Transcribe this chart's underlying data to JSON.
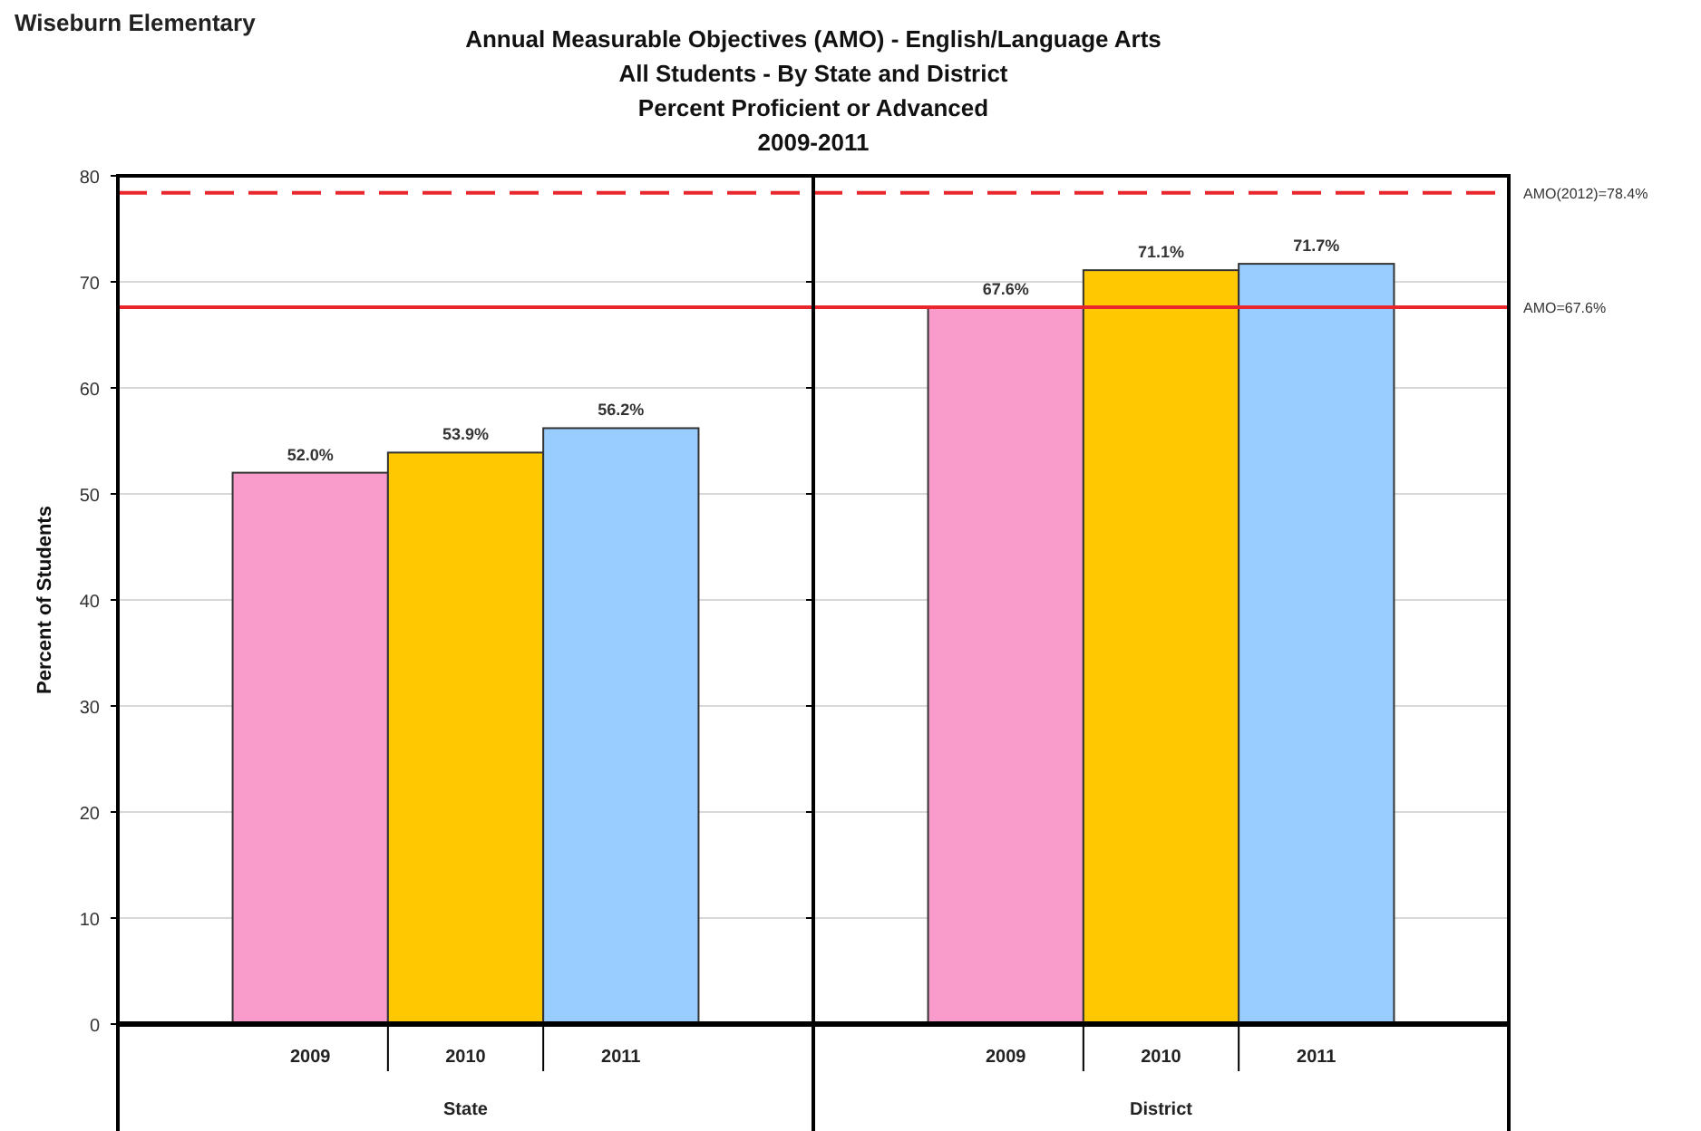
{
  "chart_data": [
    {
      "type": "bar",
      "title": "Annual Measurable Objectives (AMO) - English/Language Arts",
      "subtitle": "All Students - By State and District\nPercent Proficient or Advanced\n2009-2011",
      "annotations": [
        "Wiseburn Elementary"
      ],
      "ylabel": "Percent of Students",
      "xlabel": "State",
      "categories": [
        "2009",
        "2010",
        "2011"
      ],
      "values": [
        52.0,
        53.9,
        56.2
      ],
      "value_labels": [
        "52.0%",
        "53.9%",
        "56.2%"
      ],
      "colors": [
        "#f99bcb",
        "#ffc800",
        "#99ccff"
      ],
      "ylim": [
        0,
        80
      ],
      "yticks": [
        0,
        10,
        20,
        30,
        40,
        50,
        60,
        70,
        80
      ],
      "grid": "y",
      "ref_lines": [
        {
          "axis": "y",
          "value": 67.6,
          "color": "#e8262c",
          "line_style": "solid"
        },
        {
          "axis": "y",
          "value": 78.4,
          "color": "#e8262c",
          "line_style": "dashed"
        }
      ]
    },
    {
      "type": "bar",
      "xlabel": "District",
      "categories": [
        "2009",
        "2010",
        "2011"
      ],
      "values": [
        67.6,
        71.1,
        71.7
      ],
      "value_labels": [
        "67.6%",
        "71.1%",
        "71.7%"
      ],
      "colors": [
        "#f99bcb",
        "#ffc800",
        "#99ccff"
      ],
      "ylim": [
        0,
        80
      ],
      "yticks": [
        0,
        10,
        20,
        30,
        40,
        50,
        60,
        70,
        80
      ],
      "grid": "y",
      "tick_labels": "x",
      "ref_lines": [
        {
          "axis": "y",
          "value": 67.6,
          "label": "AMO=67.6%",
          "color": "#e8262c",
          "line_style": "solid"
        },
        {
          "axis": "y",
          "value": 78.4,
          "label": "AMO(2012)=78.4%",
          "color": "#e8262c",
          "line_style": "dashed"
        }
      ]
    }
  ]
}
